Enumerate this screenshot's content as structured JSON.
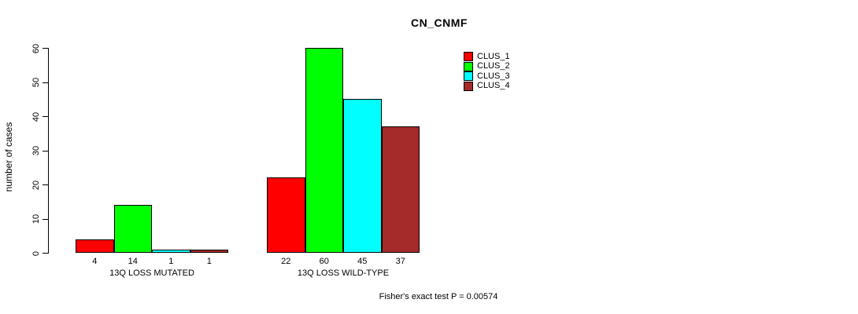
{
  "title": "CN_CNMF",
  "footer": "Fisher's exact test P = 0.00574",
  "y_axis": {
    "label": "number of cases",
    "ticks": [
      0,
      10,
      20,
      30,
      40,
      50,
      60
    ]
  },
  "legend": {
    "items": [
      {
        "label": "CLUS_1",
        "color": "#FF0000"
      },
      {
        "label": "CLUS_2",
        "color": "#00FF00"
      },
      {
        "label": "CLUS_3",
        "color": "#00FFFF"
      },
      {
        "label": "CLUS_4",
        "color": "#A52A2A"
      }
    ]
  },
  "chart_data": {
    "type": "bar",
    "title": "CN_CNMF",
    "xlabel": "",
    "ylabel": "number of cases",
    "ylim": [
      0,
      60
    ],
    "yticks": [
      0,
      10,
      20,
      30,
      40,
      50,
      60
    ],
    "categories": [
      "13Q LOSS MUTATED",
      "13Q LOSS WILD-TYPE"
    ],
    "series": [
      {
        "name": "CLUS_1",
        "color": "#FF0000",
        "values": [
          4,
          22
        ]
      },
      {
        "name": "CLUS_2",
        "color": "#00FF00",
        "values": [
          14,
          60
        ]
      },
      {
        "name": "CLUS_3",
        "color": "#00FFFF",
        "values": [
          1,
          45
        ]
      },
      {
        "name": "CLUS_4",
        "color": "#A52A2A",
        "values": [
          1,
          37
        ]
      }
    ],
    "bar_value_labels": [
      [
        "4",
        "14",
        "1",
        "1"
      ],
      [
        "22",
        "60",
        "45",
        "37"
      ]
    ],
    "legend_position": "top-right",
    "grid": false,
    "annotation": "Fisher's exact test P = 0.00574"
  }
}
